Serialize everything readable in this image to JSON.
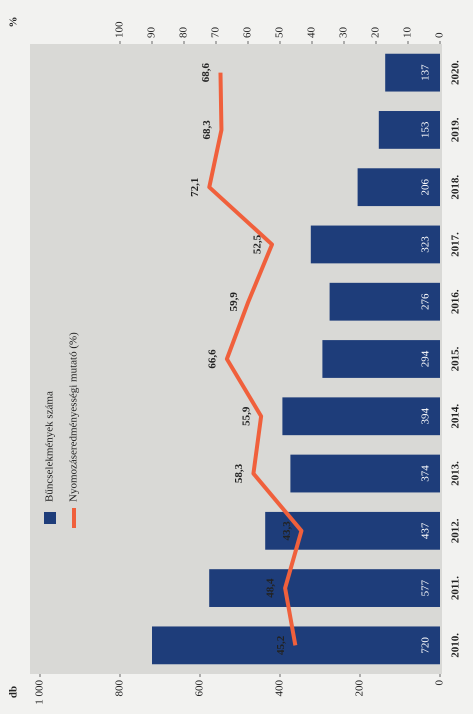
{
  "chart_data": {
    "type": "bar-line",
    "categories": [
      "2010.",
      "2011.",
      "2012.",
      "2013.",
      "2014.",
      "2015.",
      "2016.",
      "2017.",
      "2018.",
      "2019.",
      "2020."
    ],
    "series": [
      {
        "name": "Bűncselekmények száma",
        "type": "bar",
        "color": "#1e3d7a",
        "values": [
          720,
          577,
          437,
          374,
          394,
          294,
          276,
          323,
          206,
          153,
          137
        ]
      },
      {
        "name": "Nyomozáseredményességi mutató (%)",
        "type": "line",
        "axis": "y2",
        "color": "#f0603c",
        "values": [
          45.2,
          48.4,
          43.3,
          58.3,
          55.9,
          66.6,
          59.9,
          52.5,
          72.1,
          68.3,
          68.6
        ],
        "value_labels": [
          "45,2",
          "48,4",
          "43,3",
          "58,3",
          "55,9",
          "66,6",
          "59,9",
          "52,5",
          "72,1",
          "68,3",
          "68,6"
        ]
      }
    ],
    "ylabel": "db",
    "y2label": "%",
    "ylim": [
      0,
      1000
    ],
    "yticks": [
      0,
      200,
      400,
      600,
      800,
      {
        "value": 1000,
        "label": "1 000"
      }
    ],
    "y2lim": [
      0,
      100
    ],
    "y2ticks": [
      0,
      10,
      20,
      30,
      40,
      50,
      60,
      70,
      80,
      90,
      100
    ]
  }
}
